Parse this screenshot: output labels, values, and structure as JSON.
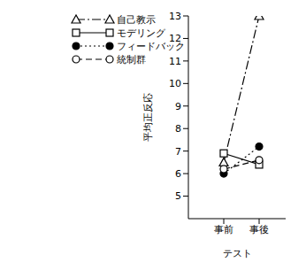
{
  "chart_data": {
    "type": "line",
    "x_label": "テスト",
    "y_label": "平均正反応",
    "categories": [
      "事前",
      "事後"
    ],
    "series": [
      {
        "name": "自己教示",
        "color": "#000000",
        "values": [
          6.5,
          13.0
        ],
        "marker": "triangle-open",
        "line_style": "dashdot"
      },
      {
        "name": "モデリング",
        "color": "#000000",
        "values": [
          6.9,
          6.4
        ],
        "marker": "square-open",
        "line_style": "solid"
      },
      {
        "name": "フィードバック",
        "color": "#000000",
        "values": [
          6.0,
          7.2
        ],
        "marker": "circle",
        "line_style": "dotted"
      },
      {
        "name": "統制群",
        "color": "#000000",
        "values": [
          6.2,
          6.6
        ],
        "marker": "circle-open",
        "line_style": "dashed"
      }
    ],
    "ylim": [
      4,
      13
    ],
    "yticks": [
      5,
      6,
      7,
      8,
      9,
      10,
      11,
      12,
      13
    ],
    "grid": false,
    "legend": "upper left"
  }
}
